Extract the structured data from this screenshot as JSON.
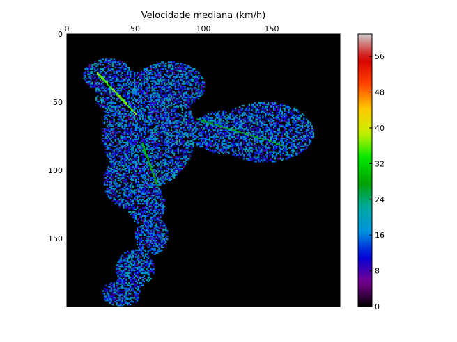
{
  "chart_data": {
    "type": "heatmap",
    "title": "Velocidade mediana (km/h)",
    "xlabel": "",
    "ylabel": "",
    "x_axis_position": "top",
    "xlim": [
      0,
      200
    ],
    "ylim": [
      200,
      0
    ],
    "xticks": [
      0,
      50,
      100,
      150
    ],
    "yticks": [
      0,
      50,
      100,
      150
    ],
    "background": "#000000",
    "colormap": "nipy_spectral",
    "colorbar": {
      "range": [
        0,
        61
      ],
      "ticks": [
        0,
        8,
        16,
        24,
        32,
        40,
        48,
        56
      ],
      "stops": [
        "#000000",
        "#7a0090",
        "#0000d8",
        "#0090e0",
        "#00aaa0",
        "#00a000",
        "#00e800",
        "#c8f000",
        "#ffc800",
        "#ff4000",
        "#d40000",
        "#cccccc"
      ]
    },
    "region": {
      "description_points": [],
      "typical_speed_range": [
        8,
        22
      ],
      "highways": [
        {
          "from": [
            22,
            28
          ],
          "to": [
            50,
            58
          ],
          "speed": 36
        },
        {
          "from": [
            55,
            80
          ],
          "to": [
            66,
            110
          ],
          "speed": 28
        },
        {
          "from": [
            95,
            62
          ],
          "to": [
            160,
            82
          ],
          "speed": 26
        }
      ]
    }
  }
}
